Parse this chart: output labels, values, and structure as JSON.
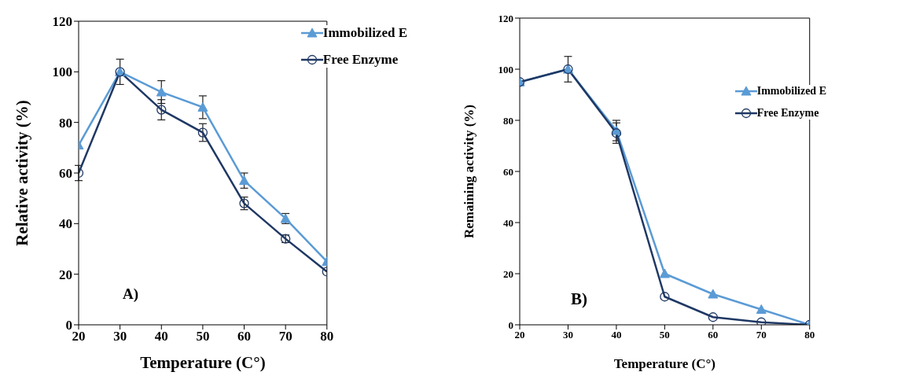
{
  "chart_data": [
    {
      "type": "line",
      "xlabel": "Temperature (C°)",
      "ylabel": "Relative activity (%)",
      "x": [
        20,
        30,
        40,
        50,
        60,
        70,
        80
      ],
      "xlim": [
        20,
        80
      ],
      "xticks": [
        20,
        30,
        40,
        50,
        60,
        70,
        80
      ],
      "ylim": [
        0,
        120
      ],
      "yticks": [
        0,
        20,
        40,
        60,
        80,
        100,
        120
      ],
      "grid": false,
      "legend": "top right",
      "annotations": [
        "A)"
      ],
      "series": [
        {
          "name": "Immobilized E",
          "color": "#5b9bd5",
          "marker": "triangle",
          "values": [
            71,
            100,
            92,
            86,
            57,
            42,
            25
          ],
          "errors": [
            null,
            5,
            4.5,
            4.5,
            3,
            2,
            null
          ]
        },
        {
          "name": "Free Enzyme",
          "color": "#1f3864",
          "marker": "circle",
          "values": [
            60,
            100,
            85,
            76,
            48,
            34,
            21
          ],
          "errors": [
            3,
            null,
            4,
            3.5,
            2.5,
            1.5,
            null
          ]
        }
      ]
    },
    {
      "type": "line",
      "xlabel": "Temperature (C°)",
      "ylabel": "Remaining activity (%)",
      "x": [
        20,
        30,
        40,
        50,
        60,
        70,
        80
      ],
      "xlim": [
        20,
        80
      ],
      "xticks": [
        20,
        30,
        40,
        50,
        60,
        70,
        80
      ],
      "ylim": [
        0,
        120
      ],
      "yticks": [
        0,
        20,
        40,
        60,
        80,
        100,
        120
      ],
      "grid": false,
      "legend": "top right",
      "annotations": [
        "B)"
      ],
      "series": [
        {
          "name": "Immobilized E",
          "color": "#5b9bd5",
          "marker": "triangle",
          "values": [
            95,
            100,
            76,
            20,
            12,
            6,
            0
          ],
          "errors": [
            null,
            5,
            4,
            null,
            null,
            null,
            null
          ]
        },
        {
          "name": "Free Enzyme",
          "color": "#1f3864",
          "marker": "circle",
          "values": [
            95,
            100,
            75,
            11,
            3,
            1,
            0
          ],
          "errors": [
            null,
            null,
            4,
            null,
            null,
            null,
            null
          ]
        }
      ]
    }
  ]
}
